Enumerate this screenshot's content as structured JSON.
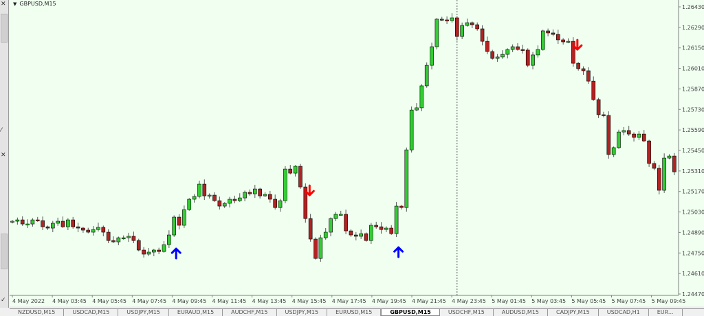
{
  "window": {
    "title": "GBPUSD,M15"
  },
  "colors": {
    "background": "#f0fff0",
    "bull": "#32cd32",
    "bear": "#b22222",
    "outline": "#000000",
    "signal_up": "#0000ff",
    "signal_down": "#ff0000",
    "axis": "#808080"
  },
  "tabs": [
    {
      "label": "NZDUSD,M15",
      "active": false
    },
    {
      "label": "USDCAD,M15",
      "active": false
    },
    {
      "label": "USDJPY,M15",
      "active": false
    },
    {
      "label": "EURAUD,M15",
      "active": false
    },
    {
      "label": "AUDCHF,M15",
      "active": false
    },
    {
      "label": "USDJPY,M15",
      "active": false
    },
    {
      "label": "EURUSD,M15",
      "active": false
    },
    {
      "label": "GBPUSD,M15",
      "active": true
    },
    {
      "label": "USDCHF,M15",
      "active": false
    },
    {
      "label": "AUDUSD,M15",
      "active": false
    },
    {
      "label": "CADJPY,M15",
      "active": false
    },
    {
      "label": "USDCAD,H1",
      "active": false
    },
    {
      "label": "EUR...",
      "active": false
    }
  ],
  "chart_data": {
    "type": "candlestick",
    "symbol": "GBPUSD,M15",
    "ylim": [
      1.2447,
      1.2643
    ],
    "price_ticks": [
      "1.26430",
      "1.26290",
      "1.26150",
      "1.26010",
      "1.25870",
      "1.25730",
      "1.25590",
      "1.25450",
      "1.25310",
      "1.25170",
      "1.25030",
      "1.24890",
      "1.24750",
      "1.24610",
      "1.24470"
    ],
    "time_ticks": [
      "4 May 2022",
      "4 May 03:45",
      "4 May 05:45",
      "4 May 07:45",
      "4 May 09:45",
      "4 May 11:45",
      "4 May 13:45",
      "4 May 15:45",
      "4 May 17:45",
      "4 May 19:45",
      "4 May 21:45",
      "4 May 23:45",
      "5 May 01:45",
      "5 May 03:45",
      "5 May 05:45",
      "5 May 07:45",
      "5 May 09:45"
    ],
    "first_open": 1.2496,
    "closes": [
      1.24967,
      1.24976,
      1.24948,
      1.24948,
      1.24976,
      1.24971,
      1.24929,
      1.2492,
      1.24953,
      1.24967,
      1.24929,
      1.24976,
      1.24929,
      1.2492,
      1.24906,
      1.24892,
      1.2491,
      1.24925,
      1.24892,
      1.24835,
      1.24826,
      1.24854,
      1.24854,
      1.24864,
      1.24835,
      1.2477,
      1.24742,
      1.24756,
      1.2477,
      1.2476,
      1.24807,
      1.24873,
      1.24995,
      1.24939,
      1.25046,
      1.25117,
      1.25136,
      1.2522,
      1.2514,
      1.25145,
      1.25107,
      1.2507,
      1.25089,
      1.25117,
      1.25107,
      1.25126,
      1.25164,
      1.25154,
      1.25187,
      1.2514,
      1.2515,
      1.25117,
      1.2506,
      1.25107,
      1.25323,
      1.25295,
      1.25342,
      1.25201,
      1.24985,
      1.24845,
      1.24713,
      1.24854,
      1.24892,
      1.24985,
      1.25014,
      1.25014,
      1.24901,
      1.24873,
      1.24864,
      1.24882,
      1.24835,
      1.24939,
      1.24929,
      1.2491,
      1.2492,
      1.24882,
      1.2507,
      1.2506,
      1.25454,
      1.25726,
      1.25741,
      1.25891,
      1.26031,
      1.26158,
      1.26346,
      1.26341,
      1.26336,
      1.26355,
      1.26228,
      1.26303,
      1.26322,
      1.26308,
      1.2628,
      1.26195,
      1.26125,
      1.26078,
      1.26088,
      1.26106,
      1.26139,
      1.26158,
      1.26139,
      1.26135,
      1.26031,
      1.26102,
      1.26139,
      1.26266,
      1.26252,
      1.26242,
      1.26205,
      1.26191,
      1.26195,
      1.26045,
      1.26008,
      1.25994,
      1.25923,
      1.25797,
      1.25694,
      1.25689,
      1.25422,
      1.25469,
      1.25576,
      1.25586,
      1.25562,
      1.25539,
      1.25562,
      1.25515,
      1.25361,
      1.25328,
      1.25178,
      1.25398,
      1.25412,
      1.25304
    ],
    "signals": [
      {
        "index": 32,
        "direction": "up"
      },
      {
        "index": 58,
        "direction": "down"
      },
      {
        "index": 76,
        "direction": "up"
      },
      {
        "index": 111,
        "direction": "down"
      }
    ],
    "period_separator_index": 88,
    "grid": false
  }
}
